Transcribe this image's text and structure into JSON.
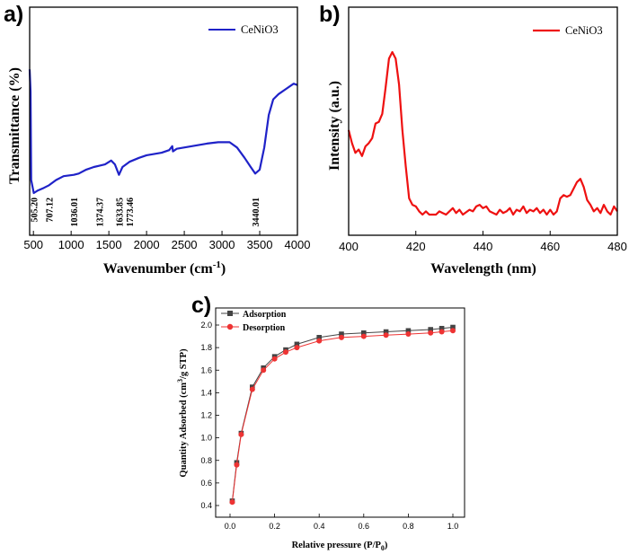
{
  "chart_data": [
    {
      "panel": "a)",
      "type": "line",
      "xlabel": "Wavenumber (cm",
      "xlabel_sup": "-1",
      "xlabel_close": ")",
      "ylabel": "Transmittance (%)",
      "xlim": [
        450,
        4000
      ],
      "xticks": [
        500,
        1000,
        1500,
        2000,
        2500,
        3000,
        3500,
        4000
      ],
      "yticks_shown": false,
      "legend_position": "top-right",
      "series": [
        {
          "name": "CeNiO3",
          "color": "#1f22c8",
          "points": [
            [
              450,
              0.95
            ],
            [
              462,
              0.78
            ],
            [
              470,
              0.1
            ],
            [
              505,
              0.0
            ],
            [
              560,
              0.02
            ],
            [
              640,
              0.04
            ],
            [
              707,
              0.06
            ],
            [
              800,
              0.1
            ],
            [
              900,
              0.13
            ],
            [
              1036,
              0.14
            ],
            [
              1100,
              0.15
            ],
            [
              1200,
              0.18
            ],
            [
              1300,
              0.2
            ],
            [
              1374,
              0.21
            ],
            [
              1450,
              0.22
            ],
            [
              1530,
              0.25
            ],
            [
              1580,
              0.22
            ],
            [
              1634,
              0.14
            ],
            [
              1680,
              0.2
            ],
            [
              1774,
              0.24
            ],
            [
              1900,
              0.27
            ],
            [
              2000,
              0.29
            ],
            [
              2200,
              0.31
            ],
            [
              2300,
              0.33
            ],
            [
              2340,
              0.36
            ],
            [
              2350,
              0.32
            ],
            [
              2400,
              0.34
            ],
            [
              2600,
              0.36
            ],
            [
              2800,
              0.38
            ],
            [
              2950,
              0.39
            ],
            [
              3100,
              0.39
            ],
            [
              3200,
              0.35
            ],
            [
              3300,
              0.27
            ],
            [
              3380,
              0.2
            ],
            [
              3440,
              0.15
            ],
            [
              3500,
              0.18
            ],
            [
              3560,
              0.35
            ],
            [
              3620,
              0.6
            ],
            [
              3680,
              0.72
            ],
            [
              3750,
              0.76
            ],
            [
              3850,
              0.8
            ],
            [
              3950,
              0.84
            ],
            [
              4000,
              0.83
            ]
          ]
        }
      ],
      "annotations": [
        {
          "text": "505.20",
          "x": 505
        },
        {
          "text": "707.12",
          "x": 707
        },
        {
          "text": "1036.01",
          "x": 1036
        },
        {
          "text": "1374.37",
          "x": 1374
        },
        {
          "text": "1633.85",
          "x": 1634
        },
        {
          "text": "1773.46",
          "x": 1774
        },
        {
          "text": "3440.01",
          "x": 3440
        }
      ]
    },
    {
      "panel": "b)",
      "type": "line",
      "xlabel": "Wavelength (nm)",
      "ylabel": "Intensity (a.u.)",
      "xlim": [
        400,
        480
      ],
      "xticks": [
        400,
        420,
        440,
        460,
        480
      ],
      "yticks_shown": false,
      "legend_position": "top-right",
      "series": [
        {
          "name": "CeNiO3",
          "color": "#ee1111",
          "points": [
            [
              400,
              0.52
            ],
            [
              401,
              0.44
            ],
            [
              402,
              0.38
            ],
            [
              403,
              0.4
            ],
            [
              404,
              0.36
            ],
            [
              405,
              0.42
            ],
            [
              406,
              0.44
            ],
            [
              407,
              0.47
            ],
            [
              408,
              0.56
            ],
            [
              409,
              0.57
            ],
            [
              410,
              0.62
            ],
            [
              411,
              0.78
            ],
            [
              412,
              0.96
            ],
            [
              413,
              1.0
            ],
            [
              414,
              0.96
            ],
            [
              415,
              0.8
            ],
            [
              416,
              0.52
            ],
            [
              417,
              0.3
            ],
            [
              418,
              0.1
            ],
            [
              419,
              0.06
            ],
            [
              420,
              0.05
            ],
            [
              421,
              0.02
            ],
            [
              422,
              0.0
            ],
            [
              423,
              0.02
            ],
            [
              424,
              0.0
            ],
            [
              426,
              0.0
            ],
            [
              427,
              0.02
            ],
            [
              428,
              0.01
            ],
            [
              429,
              0.0
            ],
            [
              430,
              0.02
            ],
            [
              431,
              0.04
            ],
            [
              432,
              0.01
            ],
            [
              433,
              0.03
            ],
            [
              434,
              0.0
            ],
            [
              436,
              0.03
            ],
            [
              437,
              0.02
            ],
            [
              438,
              0.05
            ],
            [
              439,
              0.06
            ],
            [
              440,
              0.04
            ],
            [
              441,
              0.05
            ],
            [
              442,
              0.02
            ],
            [
              444,
              0.0
            ],
            [
              445,
              0.03
            ],
            [
              446,
              0.01
            ],
            [
              447,
              0.02
            ],
            [
              448,
              0.04
            ],
            [
              449,
              0.0
            ],
            [
              450,
              0.03
            ],
            [
              451,
              0.02
            ],
            [
              452,
              0.05
            ],
            [
              453,
              0.01
            ],
            [
              454,
              0.03
            ],
            [
              455,
              0.02
            ],
            [
              456,
              0.04
            ],
            [
              457,
              0.01
            ],
            [
              458,
              0.03
            ],
            [
              459,
              0.0
            ],
            [
              460,
              0.03
            ],
            [
              461,
              0.0
            ],
            [
              462,
              0.02
            ],
            [
              463,
              0.1
            ],
            [
              464,
              0.12
            ],
            [
              465,
              0.11
            ],
            [
              466,
              0.12
            ],
            [
              467,
              0.16
            ],
            [
              468,
              0.2
            ],
            [
              469,
              0.22
            ],
            [
              470,
              0.17
            ],
            [
              471,
              0.09
            ],
            [
              472,
              0.06
            ],
            [
              473,
              0.02
            ],
            [
              474,
              0.04
            ],
            [
              475,
              0.01
            ],
            [
              476,
              0.06
            ],
            [
              477,
              0.02
            ],
            [
              478,
              0.0
            ],
            [
              479,
              0.05
            ],
            [
              480,
              0.02
            ]
          ]
        }
      ]
    },
    {
      "panel": "c)",
      "type": "line",
      "xlabel": "Relative pressure (P/P",
      "xlabel_sub": "0",
      "xlabel_close": ")",
      "ylabel": "Quantity Adsorbed (cm",
      "ylabel_sup": "3",
      "ylabel_close": "/g STP)",
      "xlim": [
        0.0,
        1.0
      ],
      "ylim": [
        0.4,
        2.0
      ],
      "xticks": [
        "0.0",
        "0.2",
        "0.4",
        "0.6",
        "0.8",
        "1.0"
      ],
      "yticks": [
        "0.4",
        "0.6",
        "0.8",
        "1.0",
        "1.2",
        "1.4",
        "1.6",
        "1.8",
        "2.0"
      ],
      "legend_position": "top-left",
      "series": [
        {
          "name": "Adsorption",
          "color": "#444444",
          "marker": "square",
          "x": [
            0.01,
            0.03,
            0.05,
            0.1,
            0.15,
            0.2,
            0.25,
            0.3,
            0.4,
            0.5,
            0.6,
            0.7,
            0.8,
            0.9,
            0.95,
            1.0
          ],
          "y": [
            0.44,
            0.78,
            1.04,
            1.45,
            1.62,
            1.72,
            1.78,
            1.83,
            1.89,
            1.92,
            1.93,
            1.94,
            1.95,
            1.96,
            1.97,
            1.98
          ]
        },
        {
          "name": "Desorption",
          "color": "#ee3333",
          "marker": "circle",
          "x": [
            0.01,
            0.03,
            0.05,
            0.1,
            0.15,
            0.2,
            0.25,
            0.3,
            0.4,
            0.5,
            0.6,
            0.7,
            0.8,
            0.9,
            0.95,
            1.0
          ],
          "y": [
            0.43,
            0.76,
            1.03,
            1.43,
            1.6,
            1.7,
            1.76,
            1.8,
            1.86,
            1.89,
            1.9,
            1.91,
            1.92,
            1.93,
            1.94,
            1.95
          ]
        }
      ]
    }
  ]
}
